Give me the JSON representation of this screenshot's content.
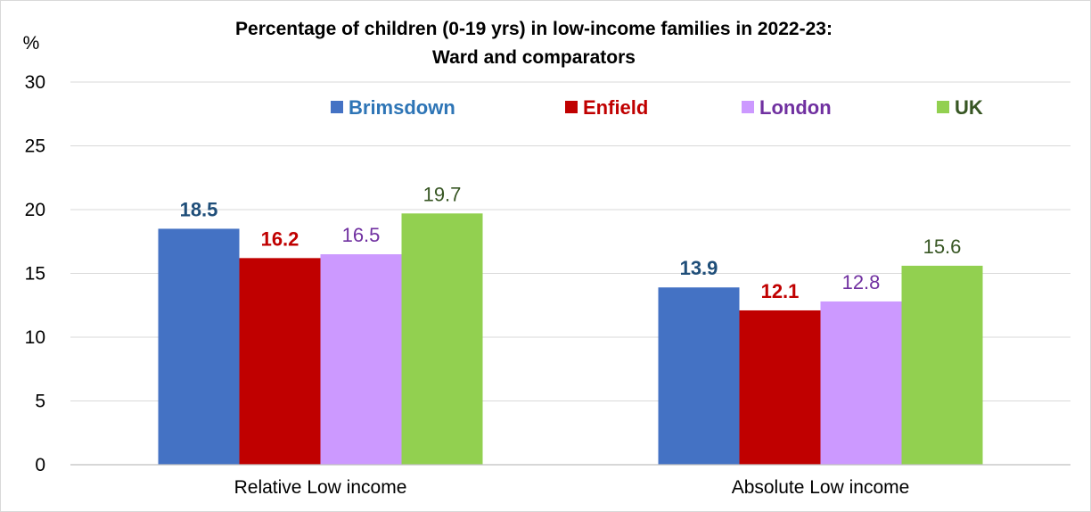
{
  "chart_data": {
    "type": "bar",
    "title": "Percentage of children (0-19 yrs) in low-income families in 2022-23:",
    "subtitle": "Ward and comparators",
    "ylabel": "%",
    "ylim": [
      0,
      30
    ],
    "yticks": [
      0,
      5,
      10,
      15,
      20,
      25,
      30
    ],
    "grid": true,
    "legend_position": "top",
    "categories": [
      "Relative Low income",
      "Absolute Low income"
    ],
    "series": [
      {
        "name": "Brimsdown",
        "values": [
          18.5,
          13.9
        ],
        "color": "#4472C4",
        "label_color": "#1F4E79",
        "label_bold": true
      },
      {
        "name": "Enfield",
        "values": [
          16.2,
          12.1
        ],
        "color": "#C00000",
        "label_color": "#C00000",
        "label_bold": true
      },
      {
        "name": "London",
        "values": [
          16.5,
          12.8
        ],
        "color": "#CC99FF",
        "label_color": "#7030A0",
        "label_bold": false
      },
      {
        "name": "UK",
        "values": [
          19.7,
          15.6
        ],
        "color": "#92D050",
        "label_color": "#375623",
        "label_bold": false
      }
    ],
    "legend_text_colors": [
      "#2E75B6",
      "#C00000",
      "#7030A0",
      "#375623"
    ]
  }
}
